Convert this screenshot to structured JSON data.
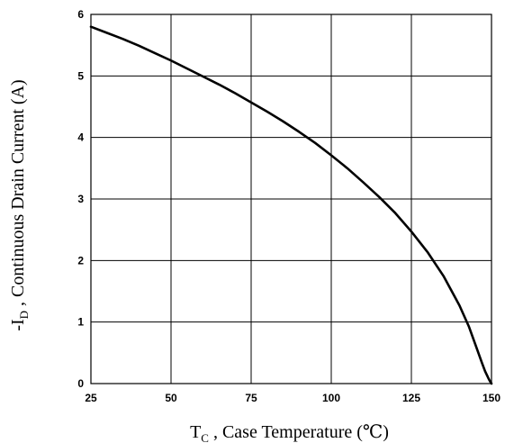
{
  "chart_data": {
    "type": "line",
    "title": "",
    "xlabel": {
      "prefix": "T",
      "sub": "C",
      "suffix": " , Case Temperature (℃)"
    },
    "ylabel": {
      "prefix": "-I",
      "sub": "D",
      "suffix": " , Continuous Drain Current (A)"
    },
    "xlim": [
      25,
      150
    ],
    "ylim": [
      0,
      6
    ],
    "x_ticks": [
      "25",
      "50",
      "75",
      "100",
      "125",
      "150"
    ],
    "y_ticks": [
      "0",
      "1",
      "2",
      "3",
      "4",
      "5",
      "6"
    ],
    "grid": true,
    "series": [
      {
        "x": [
          25,
          30,
          35,
          40,
          45,
          50,
          55,
          60,
          65,
          70,
          75,
          80,
          85,
          90,
          95,
          100,
          105,
          110,
          115,
          120,
          125,
          130,
          135,
          140,
          143,
          145,
          147,
          148,
          149,
          149.5,
          150
        ],
        "y": [
          5.8,
          5.7,
          5.6,
          5.49,
          5.37,
          5.25,
          5.12,
          4.99,
          4.86,
          4.72,
          4.57,
          4.42,
          4.26,
          4.09,
          3.91,
          3.71,
          3.5,
          3.27,
          3.03,
          2.77,
          2.47,
          2.14,
          1.75,
          1.27,
          0.92,
          0.63,
          0.34,
          0.2,
          0.09,
          0.04,
          0.0
        ]
      }
    ],
    "line_color": "#000000"
  }
}
